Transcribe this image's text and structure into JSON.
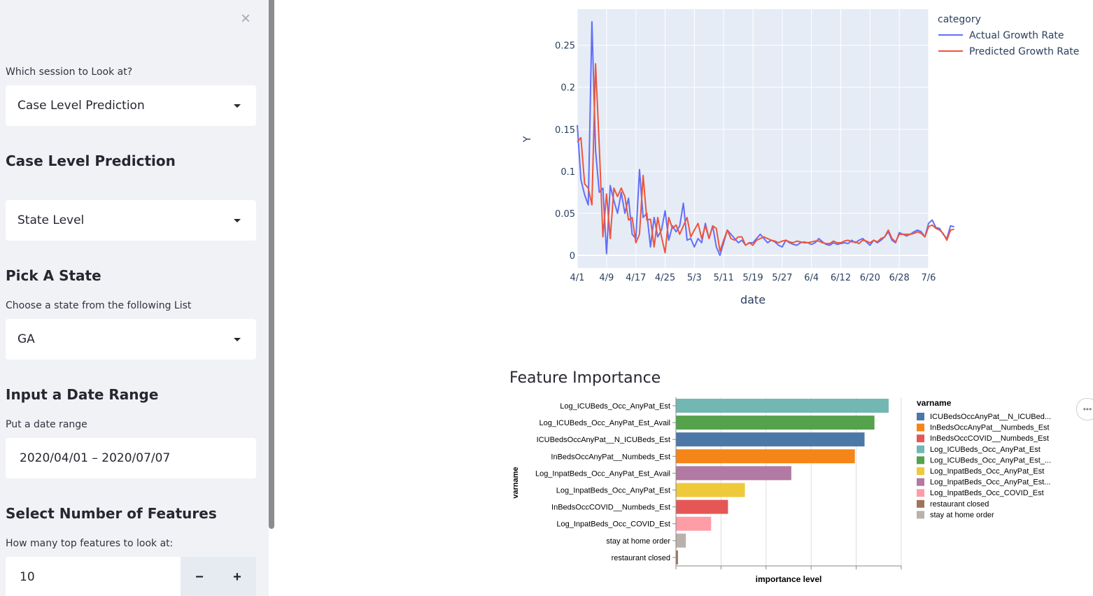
{
  "sidebar": {
    "close_symbol": "×",
    "session_label": "Which session to Look at?",
    "session_value": "Case Level Prediction",
    "section_header": "Case Level Prediction",
    "level_value": "State Level",
    "state_header": "Pick A State",
    "state_label": "Choose a state from the following List",
    "state_value": "GA",
    "date_header": "Input a Date Range",
    "date_label": "Put a date range",
    "date_value": "2020/04/01 – 2020/07/07",
    "features_header": "Select Number of Features",
    "features_label": "How many top features to look at:",
    "features_value": "10",
    "minus_label": "−",
    "plus_label": "+"
  },
  "icons": {
    "close": "close-icon",
    "caret": "chevron-down-icon",
    "menu": "more-horizontal-icon"
  },
  "colors": {
    "actual": "#636efa",
    "predicted": "#ef553b",
    "plot_bg": "#e5ecf6"
  },
  "menu_symbol": "•••",
  "line_chart": {
    "type": "line",
    "xlabel": "date",
    "ylabel": "Y",
    "legend_title": "category",
    "x_ticks": [
      "4/1",
      "4/9",
      "4/17",
      "4/25",
      "5/3",
      "5/11",
      "5/19",
      "5/27",
      "6/4",
      "6/12",
      "6/20",
      "6/28",
      "7/6"
    ],
    "y_ticks": [
      "0",
      "0.05",
      "0.1",
      "0.15",
      "0.2",
      "0.25"
    ],
    "ylim": [
      -0.015,
      0.293
    ],
    "xlim": [
      0,
      96
    ],
    "series": [
      {
        "name": "Actual Growth Rate",
        "color": "#636efa",
        "values": [
          0.155,
          0.09,
          0.072,
          0.06,
          0.278,
          0.125,
          0.075,
          0.08,
          0.002,
          0.083,
          0.065,
          0.05,
          0.075,
          0.05,
          0.068,
          0.025,
          0.02,
          0.102,
          0.045,
          0.05,
          0.01,
          0.045,
          0.022,
          0.03,
          0.053,
          0.018,
          0.035,
          0.028,
          0.035,
          0.062,
          0.018,
          0.02,
          0.01,
          0.02,
          0.015,
          0.038,
          0.02,
          0.035,
          0.01,
          0.0,
          0.015,
          0.03,
          0.025,
          0.02,
          0.015,
          0.018,
          0.012,
          0.015,
          0.015,
          0.02,
          0.025,
          0.02,
          0.015,
          0.018,
          0.016,
          0.012,
          0.01,
          0.018,
          0.015,
          0.013,
          0.012,
          0.015,
          0.016,
          0.015,
          0.013,
          0.015,
          0.02,
          0.016,
          0.013,
          0.012,
          0.015,
          0.013,
          0.014,
          0.015,
          0.014,
          0.018,
          0.015,
          0.018,
          0.02,
          0.016,
          0.012,
          0.018,
          0.015,
          0.018,
          0.022,
          0.028,
          0.018,
          0.015,
          0.027,
          0.025,
          0.023,
          0.025,
          0.028,
          0.03,
          0.028,
          0.022,
          0.038,
          0.042,
          0.033,
          0.032,
          0.025,
          0.02,
          0.035,
          0.034
        ]
      },
      {
        "name": "Predicted Growth Rate",
        "color": "#ef553b",
        "values": [
          0.135,
          0.14,
          0.085,
          0.08,
          0.06,
          0.228,
          0.13,
          0.022,
          0.073,
          0.02,
          0.08,
          0.07,
          0.08,
          0.07,
          0.042,
          0.045,
          0.015,
          0.025,
          0.095,
          0.042,
          0.043,
          0.01,
          0.045,
          0.022,
          0.003,
          0.045,
          0.032,
          0.036,
          0.025,
          0.035,
          0.045,
          0.022,
          0.03,
          0.038,
          0.02,
          0.035,
          0.02,
          0.035,
          0.032,
          0.005,
          0.018,
          0.03,
          0.02,
          0.018,
          0.022,
          0.022,
          0.012,
          0.015,
          0.012,
          0.018,
          0.02,
          0.022,
          0.02,
          0.018,
          0.017,
          0.015,
          0.017,
          0.018,
          0.016,
          0.015,
          0.017,
          0.016,
          0.015,
          0.015,
          0.016,
          0.017,
          0.017,
          0.015,
          0.014,
          0.014,
          0.017,
          0.015,
          0.015,
          0.017,
          0.018,
          0.016,
          0.016,
          0.014,
          0.018,
          0.017,
          0.015,
          0.018,
          0.016,
          0.02,
          0.022,
          0.03,
          0.02,
          0.016,
          0.025,
          0.025,
          0.025,
          0.025,
          0.026,
          0.028,
          0.026,
          0.022,
          0.034,
          0.036,
          0.032,
          0.03,
          0.026,
          0.018,
          0.03,
          0.031
        ]
      }
    ]
  },
  "feature_chart": {
    "type": "bar",
    "title": "Feature Importance",
    "xlabel": "importance level",
    "ylabel": "varname",
    "legend_title": "varname",
    "xlim": [
      0,
      1
    ],
    "bars": [
      {
        "label": "Log_ICUBeds_Occ_AnyPat_Est",
        "value": 0.944,
        "color": "#72b7b2"
      },
      {
        "label": "Log_ICUBeds_Occ_AnyPat_Est_Avail",
        "value": 0.881,
        "color": "#54a24b"
      },
      {
        "label": "ICUBedsOccAnyPat__N_ICUBeds_Est",
        "value": 0.837,
        "color": "#4c78a8"
      },
      {
        "label": "InBedsOccAnyPat__Numbeds_Est",
        "value": 0.794,
        "color": "#f58518"
      },
      {
        "label": "Log_InpatBeds_Occ_AnyPat_Est_Avail",
        "value": 0.512,
        "color": "#b279a2"
      },
      {
        "label": "Log_InpatBeds_Occ_AnyPat_Est",
        "value": 0.306,
        "color": "#eeca3b"
      },
      {
        "label": "InBedsOccCOVID__Numbeds_Est",
        "value": 0.231,
        "color": "#e45756"
      },
      {
        "label": "Log_InpatBeds_Occ_COVID_Est",
        "value": 0.156,
        "color": "#ff9da6"
      },
      {
        "label": "stay at home order",
        "value": 0.044,
        "color": "#bab0ac"
      },
      {
        "label": "restaurant closed",
        "value": 0.009,
        "color": "#9d755d"
      }
    ],
    "legend": [
      {
        "label": "ICUBedsOccAnyPat__N_ICUBed...",
        "color": "#4c78a8"
      },
      {
        "label": "InBedsOccAnyPat__Numbeds_Est",
        "color": "#f58518"
      },
      {
        "label": "InBedsOccCOVID__Numbeds_Est",
        "color": "#e45756"
      },
      {
        "label": "Log_ICUBeds_Occ_AnyPat_Est",
        "color": "#72b7b2"
      },
      {
        "label": "Log_ICUBeds_Occ_AnyPat_Est_...",
        "color": "#54a24b"
      },
      {
        "label": "Log_InpatBeds_Occ_AnyPat_Est",
        "color": "#eeca3b"
      },
      {
        "label": "Log_InpatBeds_Occ_AnyPat_Est...",
        "color": "#b279a2"
      },
      {
        "label": "Log_InpatBeds_Occ_COVID_Est",
        "color": "#ff9da6"
      },
      {
        "label": "restaurant closed",
        "color": "#9d755d"
      },
      {
        "label": "stay at home order",
        "color": "#bab0ac"
      }
    ]
  }
}
